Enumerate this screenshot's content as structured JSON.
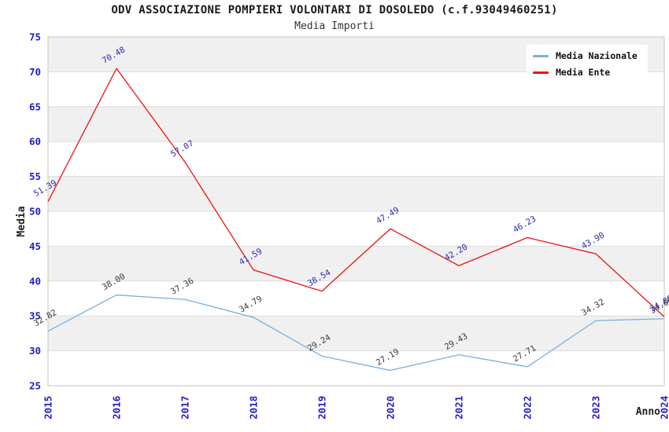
{
  "chart_data": {
    "type": "line",
    "title": "ODV ASSOCIAZIONE POMPIERI VOLONTARI DI DOSOLEDO (c.f.93049460251)",
    "subtitle": "Media Importi",
    "xlabel": "Anno",
    "ylabel": "Media",
    "x": [
      2015,
      2016,
      2017,
      2018,
      2019,
      2020,
      2021,
      2022,
      2023,
      2024
    ],
    "ylim": [
      25,
      75
    ],
    "ytick_step": 5,
    "grid": "horizontal-bands",
    "legend_position": "top-right",
    "band_color": "#f0f0f0",
    "grid_color": "#dcdcdc",
    "border_color": "#c6c6c6",
    "tick_label_color": "#2020c8",
    "series": [
      {
        "name": "Media Nazionale",
        "color": "#7aafe0",
        "label_color": "#3a3a3a",
        "values": [
          32.82,
          38.0,
          37.36,
          34.79,
          29.24,
          27.19,
          29.43,
          27.71,
          34.32,
          34.6
        ]
      },
      {
        "name": "Media Ente",
        "color": "#ee1111",
        "label_color": "#2a2ab0",
        "values": [
          51.39,
          70.48,
          57.07,
          41.59,
          38.54,
          47.49,
          42.2,
          46.23,
          43.9,
          34.88
        ]
      }
    ]
  }
}
